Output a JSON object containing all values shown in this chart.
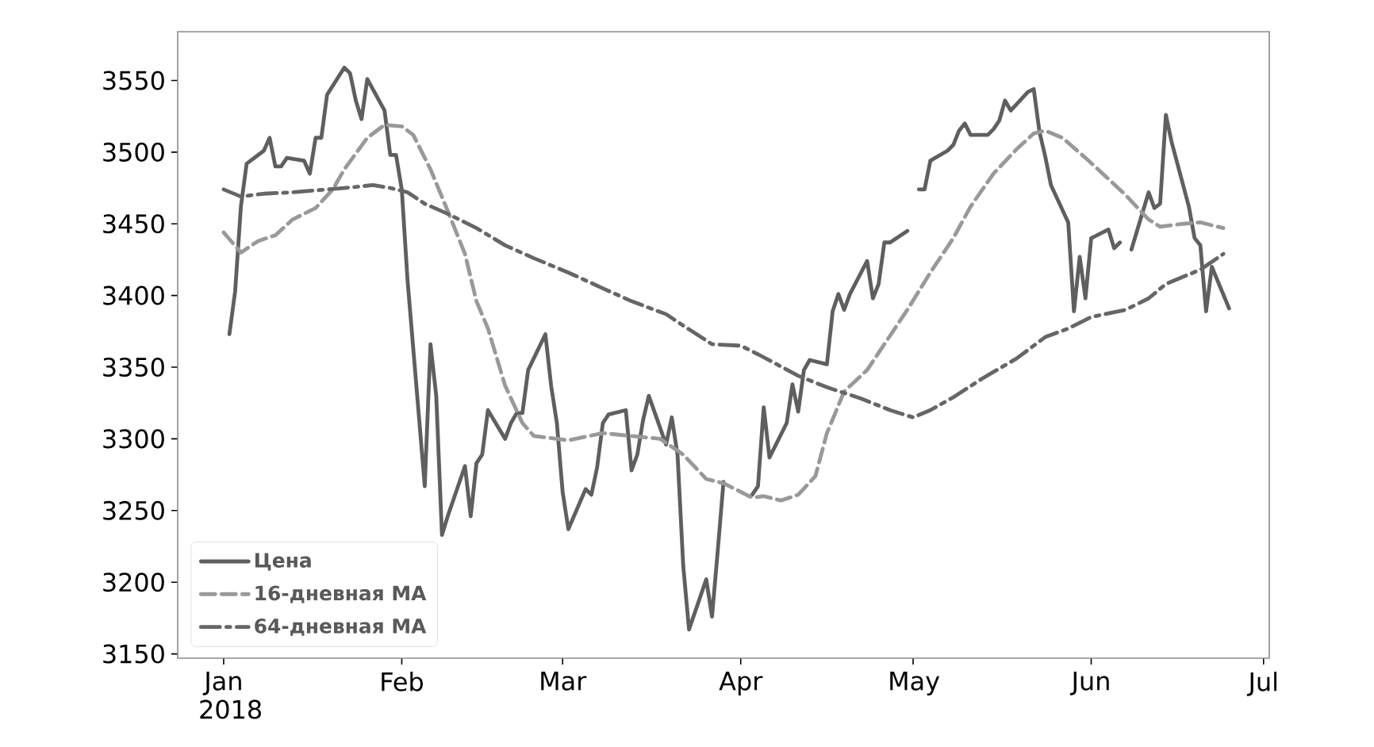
{
  "chart_data": {
    "type": "line",
    "xlim": [
      "2017-12-24",
      "2018-07-02"
    ],
    "ylim": [
      3147,
      3584
    ],
    "xticks": [
      {
        "value": "2018-01-01",
        "label": "Jan 2018"
      },
      {
        "value": "2018-02-01",
        "label": "Feb"
      },
      {
        "value": "2018-03-01",
        "label": "Mar"
      },
      {
        "value": "2018-04-01",
        "label": "Apr"
      },
      {
        "value": "2018-05-01",
        "label": "May"
      },
      {
        "value": "2018-06-01",
        "label": "Jun"
      },
      {
        "value": "2018-07-01",
        "label": "Jul"
      }
    ],
    "yticks": [
      3150,
      3200,
      3250,
      3300,
      3350,
      3400,
      3450,
      3500,
      3550
    ],
    "legend": "bottom left",
    "grid": false,
    "series": [
      {
        "name": "Цена",
        "color": "#5f5f5f",
        "line_style": "solid",
        "x": [
          "2018-01-02",
          "2018-01-03",
          "2018-01-04",
          "2018-01-05",
          "2018-01-08",
          "2018-01-09",
          "2018-01-10",
          "2018-01-11",
          "2018-01-12",
          "2018-01-15",
          "2018-01-16",
          "2018-01-17",
          "2018-01-18",
          "2018-01-19",
          "2018-01-22",
          "2018-01-23",
          "2018-01-24",
          "2018-01-25",
          "2018-01-26",
          "2018-01-29",
          "2018-01-30",
          "2018-01-31",
          "2018-02-01",
          "2018-02-02",
          "2018-02-05",
          "2018-02-06",
          "2018-02-07",
          "2018-02-08",
          "2018-02-09",
          "2018-02-12",
          "2018-02-13",
          "2018-02-14",
          "2018-02-15",
          "2018-02-16",
          "2018-02-19",
          "2018-02-20",
          "2018-02-21",
          "2018-02-22",
          "2018-02-23",
          "2018-02-26",
          "2018-02-27",
          "2018-02-28",
          "2018-03-01",
          "2018-03-02",
          "2018-03-05",
          "2018-03-06",
          "2018-03-07",
          "2018-03-08",
          "2018-03-09",
          "2018-03-12",
          "2018-03-13",
          "2018-03-14",
          "2018-03-15",
          "2018-03-16",
          "2018-03-19",
          "2018-03-20",
          "2018-03-21",
          "2018-03-22",
          "2018-03-23",
          "2018-03-26",
          "2018-03-27",
          "2018-03-28",
          "2018-03-29",
          "2018-03-30",
          "2018-04-02",
          "2018-04-03",
          "2018-04-04",
          "2018-04-05",
          "2018-04-06",
          "2018-04-09",
          "2018-04-10",
          "2018-04-11",
          "2018-04-12",
          "2018-04-13",
          "2018-04-16",
          "2018-04-17",
          "2018-04-18",
          "2018-04-19",
          "2018-04-20",
          "2018-04-23",
          "2018-04-24",
          "2018-04-25",
          "2018-04-26",
          "2018-04-27",
          "2018-04-30",
          "2018-05-01",
          "2018-05-02",
          "2018-05-03",
          "2018-05-04",
          "2018-05-07",
          "2018-05-08",
          "2018-05-09",
          "2018-05-10",
          "2018-05-11",
          "2018-05-14",
          "2018-05-15",
          "2018-05-16",
          "2018-05-17",
          "2018-05-18",
          "2018-05-21",
          "2018-05-22",
          "2018-05-23",
          "2018-05-24",
          "2018-05-25",
          "2018-05-28",
          "2018-05-29",
          "2018-05-30",
          "2018-05-31",
          "2018-06-01",
          "2018-06-04",
          "2018-06-05",
          "2018-06-06",
          "2018-06-07",
          "2018-06-08",
          "2018-06-11",
          "2018-06-12",
          "2018-06-13",
          "2018-06-14",
          "2018-06-15",
          "2018-06-18",
          "2018-06-19",
          "2018-06-20",
          "2018-06-21",
          "2018-06-22",
          "2018-06-25"
        ],
        "values": [
          3373,
          3403,
          3462,
          3492,
          3501,
          3510,
          3490,
          3490,
          3496,
          3494,
          3485,
          3510,
          3510,
          3540,
          3559,
          3555,
          3536,
          3523,
          3551,
          3529,
          3498,
          3498,
          3474,
          3411,
          3267,
          3366,
          3330,
          3233,
          3246,
          3281,
          3246,
          3283,
          3289,
          3320,
          3300,
          3311,
          3318,
          3318,
          3348,
          3373,
          3337,
          3311,
          3263,
          3237,
          3265,
          3261,
          3280,
          3311,
          3317,
          3320,
          3278,
          3289,
          3313,
          3330,
          3296,
          3315,
          3289,
          3211,
          3167,
          3202,
          3176,
          3222,
          3270,
          null,
          null,
          3261,
          3267,
          3322,
          3287,
          3311,
          3338,
          3319,
          3348,
          3355,
          3352,
          3389,
          3401,
          3390,
          3401,
          3424,
          3398,
          3408,
          3437,
          3437,
          3445,
          null,
          3474,
          3474,
          3494,
          3501,
          3505,
          3515,
          3520,
          3512,
          3512,
          3516,
          3522,
          3536,
          3529,
          3542,
          3544,
          3514,
          3497,
          3477,
          3451,
          3389,
          3427,
          3398,
          3440,
          3446,
          3433,
          3437,
          null,
          3432,
          3472,
          3461,
          3464,
          3526,
          3507,
          3462,
          3440,
          3435,
          3389,
          3420,
          3391
        ]
      },
      {
        "name": "16-дневная MA",
        "color": "#999999",
        "line_style": "dashed",
        "x": [
          "2018-01-01",
          "2018-01-04",
          "2018-01-07",
          "2018-01-10",
          "2018-01-13",
          "2018-01-17",
          "2018-01-20",
          "2018-01-22",
          "2018-01-26",
          "2018-01-29",
          "2018-02-01",
          "2018-02-03",
          "2018-02-06",
          "2018-02-09",
          "2018-02-12",
          "2018-02-14",
          "2018-02-16",
          "2018-02-19",
          "2018-02-22",
          "2018-02-24",
          "2018-03-02",
          "2018-03-08",
          "2018-03-13",
          "2018-03-18",
          "2018-03-22",
          "2018-03-26",
          "2018-03-29",
          "2018-04-03",
          "2018-04-05",
          "2018-04-08",
          "2018-04-11",
          "2018-04-14",
          "2018-04-16",
          "2018-04-19",
          "2018-04-23",
          "2018-04-27",
          "2018-04-30",
          "2018-05-04",
          "2018-05-08",
          "2018-05-11",
          "2018-05-15",
          "2018-05-19",
          "2018-05-22",
          "2018-05-24",
          "2018-05-27",
          "2018-05-31",
          "2018-06-03",
          "2018-06-07",
          "2018-06-11",
          "2018-06-13",
          "2018-06-17",
          "2018-06-20",
          "2018-06-24"
        ],
        "values": [
          3444,
          3430,
          3438,
          3442,
          3453,
          3461,
          3474,
          3488,
          3510,
          3519,
          3518,
          3512,
          3488,
          3459,
          3429,
          3396,
          3377,
          3337,
          3311,
          3302,
          3299,
          3304,
          3302,
          3300,
          3289,
          3272,
          3269,
          3259,
          3260,
          3257,
          3261,
          3274,
          3304,
          3333,
          3348,
          3372,
          3390,
          3416,
          3440,
          3462,
          3485,
          3502,
          3513,
          3515,
          3510,
          3496,
          3485,
          3470,
          3453,
          3448,
          3450,
          3451,
          3447
        ]
      },
      {
        "name": "64-дневная MA",
        "color": "#666666",
        "line_style": "dashdot",
        "x": [
          "2018-01-01",
          "2018-01-04",
          "2018-01-08",
          "2018-01-13",
          "2018-01-19",
          "2018-01-22",
          "2018-01-27",
          "2018-01-30",
          "2018-02-02",
          "2018-02-05",
          "2018-02-09",
          "2018-02-14",
          "2018-02-19",
          "2018-02-24",
          "2018-03-02",
          "2018-03-08",
          "2018-03-13",
          "2018-03-19",
          "2018-03-22",
          "2018-03-27",
          "2018-04-01",
          "2018-04-04",
          "2018-04-11",
          "2018-04-16",
          "2018-04-22",
          "2018-04-27",
          "2018-05-01",
          "2018-05-04",
          "2018-05-08",
          "2018-05-13",
          "2018-05-19",
          "2018-05-24",
          "2018-05-28",
          "2018-06-01",
          "2018-06-07",
          "2018-06-11",
          "2018-06-14",
          "2018-06-20",
          "2018-06-24"
        ],
        "values": [
          3474,
          3469,
          3471,
          3472,
          3474,
          3475,
          3477,
          3475,
          3472,
          3464,
          3457,
          3447,
          3435,
          3426,
          3416,
          3405,
          3396,
          3387,
          3379,
          3366,
          3365,
          3359,
          3344,
          3336,
          3328,
          3320,
          3315,
          3320,
          3329,
          3342,
          3356,
          3371,
          3377,
          3385,
          3390,
          3398,
          3408,
          3418,
          3429
        ]
      }
    ]
  }
}
